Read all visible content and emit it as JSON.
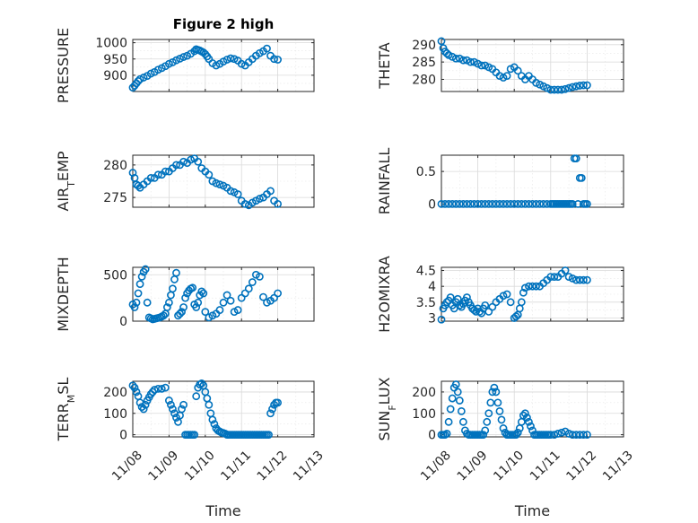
{
  "figure": {
    "marker_color": "#0072BD",
    "x_tick_labels": [
      "11/08",
      "11/09",
      "11/10",
      "11/11",
      "11/12",
      "11/13"
    ]
  },
  "chart_data": [
    {
      "type": "scatter",
      "id": "pressure",
      "title": "Figure 2 high",
      "ylabel": "PRESSURE",
      "xlabel": "",
      "xlim": [
        0,
        5
      ],
      "ylim": [
        850,
        1010
      ],
      "yticks": [
        900,
        950,
        1000
      ],
      "grid": true,
      "x": [
        0.0,
        0.05,
        0.1,
        0.15,
        0.2,
        0.3,
        0.4,
        0.5,
        0.6,
        0.7,
        0.8,
        0.9,
        1.0,
        1.1,
        1.2,
        1.3,
        1.4,
        1.5,
        1.6,
        1.7,
        1.75,
        1.8,
        1.85,
        1.9,
        1.95,
        2.0,
        2.05,
        2.1,
        2.2,
        2.3,
        2.4,
        2.5,
        2.6,
        2.7,
        2.8,
        2.9,
        3.0,
        3.1,
        3.2,
        3.3,
        3.4,
        3.5,
        3.6,
        3.7,
        3.8,
        3.9,
        4.0
      ],
      "y": [
        862,
        868,
        875,
        882,
        888,
        893,
        898,
        905,
        910,
        917,
        922,
        928,
        935,
        940,
        946,
        951,
        956,
        960,
        966,
        974,
        980,
        978,
        976,
        973,
        970,
        965,
        958,
        950,
        937,
        930,
        935,
        942,
        948,
        952,
        950,
        945,
        935,
        930,
        940,
        950,
        960,
        968,
        974,
        982,
        960,
        950,
        948
      ]
    },
    {
      "type": "scatter",
      "id": "theta",
      "title": "",
      "ylabel": "THETA",
      "xlabel": "",
      "xlim": [
        0,
        5
      ],
      "ylim": [
        276.5,
        291.5
      ],
      "yticks": [
        280,
        285,
        290
      ],
      "grid": true,
      "x": [
        0.0,
        0.05,
        0.1,
        0.15,
        0.2,
        0.3,
        0.4,
        0.5,
        0.6,
        0.7,
        0.8,
        0.9,
        1.0,
        1.1,
        1.2,
        1.3,
        1.4,
        1.5,
        1.6,
        1.7,
        1.8,
        1.9,
        2.0,
        2.1,
        2.2,
        2.3,
        2.4,
        2.5,
        2.6,
        2.7,
        2.8,
        2.9,
        3.0,
        3.1,
        3.2,
        3.3,
        3.4,
        3.5,
        3.6,
        3.7,
        3.8,
        3.9,
        4.0
      ],
      "y": [
        291,
        289,
        288,
        287.5,
        287,
        286.5,
        286,
        286,
        285.5,
        285.5,
        285,
        285,
        284.5,
        284,
        284,
        283.5,
        283,
        282,
        281,
        280.5,
        281,
        283,
        283.5,
        282.5,
        281,
        280,
        281,
        280,
        279,
        278.5,
        278,
        277.5,
        277,
        277,
        277,
        277,
        277.2,
        277.5,
        277.8,
        278,
        278.2,
        278.3,
        278.3
      ]
    },
    {
      "type": "scatter",
      "id": "air_temp",
      "title": "",
      "ylabel": "AIR_TEMP",
      "xlabel": "",
      "xlim": [
        0,
        5
      ],
      "ylim": [
        273.5,
        281.5
      ],
      "yticks": [
        275,
        280
      ],
      "grid": true,
      "x": [
        0.0,
        0.05,
        0.1,
        0.15,
        0.2,
        0.3,
        0.4,
        0.5,
        0.6,
        0.7,
        0.8,
        0.9,
        1.0,
        1.1,
        1.2,
        1.3,
        1.4,
        1.5,
        1.6,
        1.7,
        1.8,
        1.9,
        2.0,
        2.1,
        2.2,
        2.3,
        2.4,
        2.5,
        2.6,
        2.7,
        2.8,
        2.9,
        3.0,
        3.1,
        3.2,
        3.3,
        3.4,
        3.5,
        3.6,
        3.7,
        3.8,
        3.9,
        4.0
      ],
      "y": [
        278.8,
        278,
        277,
        276.8,
        276.5,
        277,
        277.5,
        278,
        278,
        278.5,
        278.5,
        279,
        279,
        279.5,
        280,
        280,
        280.5,
        280.3,
        280.8,
        281,
        280.5,
        279.5,
        279,
        278.5,
        277.5,
        277.2,
        277,
        276.8,
        276.5,
        276,
        275.8,
        275.5,
        274.5,
        274,
        273.8,
        274.2,
        274.5,
        274.8,
        275,
        275.5,
        276,
        274.5,
        274
      ]
    },
    {
      "type": "scatter",
      "id": "rainfall",
      "title": "",
      "ylabel": "RAINFALL",
      "xlabel": "",
      "xlim": [
        0,
        5
      ],
      "ylim": [
        -0.05,
        0.75
      ],
      "yticks": [
        0,
        0.5
      ],
      "grid": true,
      "x": [
        0.0,
        0.1,
        0.2,
        0.3,
        0.4,
        0.5,
        0.6,
        0.7,
        0.8,
        0.9,
        1.0,
        1.1,
        1.2,
        1.3,
        1.4,
        1.5,
        1.6,
        1.7,
        1.8,
        1.9,
        2.0,
        2.1,
        2.2,
        2.3,
        2.4,
        2.5,
        2.6,
        2.7,
        2.8,
        2.9,
        3.0,
        3.05,
        3.1,
        3.15,
        3.2,
        3.25,
        3.3,
        3.35,
        3.4,
        3.45,
        3.5,
        3.55,
        3.6,
        3.65,
        3.7,
        3.75,
        3.8,
        3.85,
        3.9,
        3.95,
        4.0
      ],
      "y": [
        0,
        0,
        0,
        0,
        0,
        0,
        0,
        0,
        0,
        0,
        0,
        0,
        0,
        0,
        0,
        0,
        0,
        0,
        0,
        0,
        0,
        0,
        0,
        0,
        0,
        0,
        0,
        0,
        0,
        0,
        0,
        0,
        0,
        0,
        0,
        0,
        0,
        0,
        0,
        0,
        0,
        0,
        0,
        0.7,
        0.7,
        0,
        0.4,
        0.4,
        0,
        0,
        0
      ]
    },
    {
      "type": "scatter",
      "id": "mixdepth",
      "title": "",
      "ylabel": "MIXDEPTH",
      "xlabel": "",
      "xlim": [
        0,
        5
      ],
      "ylim": [
        0,
        580
      ],
      "yticks": [
        0,
        500
      ],
      "grid": true,
      "x": [
        0.0,
        0.05,
        0.1,
        0.15,
        0.2,
        0.25,
        0.3,
        0.35,
        0.4,
        0.45,
        0.5,
        0.55,
        0.6,
        0.65,
        0.7,
        0.75,
        0.8,
        0.85,
        0.9,
        0.95,
        1.0,
        1.05,
        1.1,
        1.15,
        1.2,
        1.25,
        1.3,
        1.35,
        1.4,
        1.45,
        1.5,
        1.55,
        1.6,
        1.65,
        1.7,
        1.75,
        1.8,
        1.85,
        1.9,
        1.95,
        2.0,
        2.1,
        2.2,
        2.3,
        2.4,
        2.5,
        2.6,
        2.7,
        2.8,
        2.9,
        3.0,
        3.1,
        3.2,
        3.3,
        3.4,
        3.5,
        3.6,
        3.7,
        3.8,
        3.9,
        4.0
      ],
      "y": [
        180,
        150,
        200,
        300,
        400,
        480,
        530,
        560,
        200,
        40,
        30,
        20,
        25,
        30,
        35,
        40,
        50,
        60,
        80,
        150,
        200,
        280,
        350,
        450,
        520,
        60,
        80,
        100,
        150,
        250,
        300,
        330,
        350,
        360,
        180,
        150,
        200,
        280,
        320,
        300,
        100,
        40,
        60,
        80,
        120,
        200,
        280,
        220,
        100,
        120,
        250,
        300,
        350,
        420,
        500,
        480,
        260,
        200,
        220,
        250,
        300
      ]
    },
    {
      "type": "scatter",
      "id": "h2omixra",
      "title": "",
      "ylabel": "H2OMIXRA",
      "xlabel": "",
      "xlim": [
        0,
        5
      ],
      "ylim": [
        2.9,
        4.6
      ],
      "yticks": [
        3,
        3.5,
        4,
        4.5
      ],
      "grid": true,
      "x": [
        0.0,
        0.05,
        0.1,
        0.15,
        0.2,
        0.25,
        0.3,
        0.35,
        0.4,
        0.45,
        0.5,
        0.55,
        0.6,
        0.65,
        0.7,
        0.75,
        0.8,
        0.85,
        0.9,
        0.95,
        1.0,
        1.05,
        1.1,
        1.15,
        1.2,
        1.3,
        1.4,
        1.5,
        1.6,
        1.7,
        1.8,
        1.9,
        2.0,
        2.05,
        2.1,
        2.15,
        2.2,
        2.25,
        2.3,
        2.4,
        2.5,
        2.6,
        2.7,
        2.8,
        2.9,
        3.0,
        3.1,
        3.2,
        3.3,
        3.4,
        3.5,
        3.6,
        3.7,
        3.8,
        3.9,
        4.0
      ],
      "y": [
        2.95,
        3.3,
        3.4,
        3.5,
        3.55,
        3.65,
        3.4,
        3.3,
        3.5,
        3.6,
        3.4,
        3.35,
        3.45,
        3.55,
        3.65,
        3.5,
        3.4,
        3.3,
        3.25,
        3.2,
        3.3,
        3.2,
        3.15,
        3.3,
        3.4,
        3.2,
        3.35,
        3.5,
        3.6,
        3.7,
        3.75,
        3.5,
        3.0,
        3.05,
        3.1,
        3.3,
        3.5,
        3.8,
        3.95,
        4.0,
        4.0,
        4.0,
        4.0,
        4.1,
        4.2,
        4.3,
        4.3,
        4.3,
        4.4,
        4.5,
        4.3,
        4.25,
        4.2,
        4.2,
        4.2,
        4.2
      ]
    },
    {
      "type": "scatter",
      "id": "terr_msl",
      "title": "",
      "ylabel": "TERR_MSL",
      "xlabel": "Time",
      "xlim": [
        0,
        5
      ],
      "ylim": [
        -10,
        250
      ],
      "yticks": [
        0,
        100,
        200
      ],
      "grid": true,
      "x": [
        0.0,
        0.05,
        0.1,
        0.15,
        0.2,
        0.25,
        0.3,
        0.35,
        0.4,
        0.45,
        0.5,
        0.55,
        0.6,
        0.7,
        0.8,
        0.9,
        1.0,
        1.05,
        1.1,
        1.15,
        1.2,
        1.25,
        1.3,
        1.35,
        1.4,
        1.45,
        1.5,
        1.55,
        1.6,
        1.65,
        1.7,
        1.75,
        1.8,
        1.85,
        1.9,
        1.95,
        2.0,
        2.05,
        2.1,
        2.15,
        2.2,
        2.25,
        2.3,
        2.35,
        2.4,
        2.45,
        2.5,
        2.55,
        2.6,
        2.65,
        2.7,
        2.75,
        2.8,
        2.85,
        2.9,
        2.95,
        3.0,
        3.05,
        3.1,
        3.15,
        3.2,
        3.25,
        3.3,
        3.35,
        3.4,
        3.45,
        3.5,
        3.55,
        3.6,
        3.65,
        3.7,
        3.75,
        3.8,
        3.85,
        3.9,
        3.95,
        4.0
      ],
      "y": [
        230,
        220,
        200,
        180,
        150,
        130,
        120,
        140,
        160,
        175,
        190,
        200,
        210,
        215,
        215,
        220,
        160,
        140,
        120,
        100,
        80,
        60,
        90,
        120,
        140,
        0,
        0,
        0,
        0,
        0,
        0,
        180,
        220,
        235,
        240,
        230,
        200,
        170,
        140,
        100,
        70,
        50,
        30,
        20,
        15,
        10,
        8,
        5,
        0,
        0,
        0,
        0,
        0,
        0,
        0,
        0,
        0,
        0,
        0,
        0,
        0,
        0,
        0,
        0,
        0,
        0,
        0,
        0,
        0,
        0,
        0,
        0,
        100,
        120,
        140,
        150,
        150
      ]
    },
    {
      "type": "scatter",
      "id": "sun_flux",
      "title": "",
      "ylabel": "SUN_FLUX",
      "xlabel": "Time",
      "xlim": [
        0,
        5
      ],
      "ylim": [
        -10,
        250
      ],
      "yticks": [
        0,
        100,
        200
      ],
      "grid": true,
      "x": [
        0.0,
        0.05,
        0.1,
        0.15,
        0.2,
        0.25,
        0.3,
        0.35,
        0.4,
        0.45,
        0.5,
        0.55,
        0.6,
        0.65,
        0.7,
        0.75,
        0.8,
        0.85,
        0.9,
        0.95,
        1.0,
        1.05,
        1.1,
        1.15,
        1.2,
        1.25,
        1.3,
        1.35,
        1.4,
        1.45,
        1.5,
        1.55,
        1.6,
        1.65,
        1.7,
        1.75,
        1.8,
        1.85,
        1.9,
        1.95,
        2.0,
        2.05,
        2.1,
        2.15,
        2.2,
        2.25,
        2.3,
        2.35,
        2.4,
        2.45,
        2.5,
        2.55,
        2.6,
        2.65,
        2.7,
        2.75,
        2.8,
        2.85,
        2.9,
        2.95,
        3.0,
        3.1,
        3.2,
        3.3,
        3.4,
        3.5,
        3.6,
        3.7,
        3.8,
        3.9,
        4.0
      ],
      "y": [
        0,
        0,
        0,
        5,
        60,
        120,
        170,
        220,
        235,
        200,
        160,
        110,
        60,
        20,
        5,
        0,
        0,
        0,
        0,
        0,
        0,
        0,
        0,
        0,
        20,
        60,
        100,
        150,
        200,
        220,
        200,
        150,
        110,
        70,
        30,
        10,
        0,
        0,
        0,
        0,
        0,
        0,
        10,
        30,
        60,
        90,
        100,
        80,
        60,
        40,
        20,
        0,
        0,
        0,
        0,
        0,
        0,
        0,
        0,
        0,
        0,
        0,
        5,
        10,
        15,
        5,
        0,
        0,
        0,
        0,
        0
      ]
    }
  ]
}
